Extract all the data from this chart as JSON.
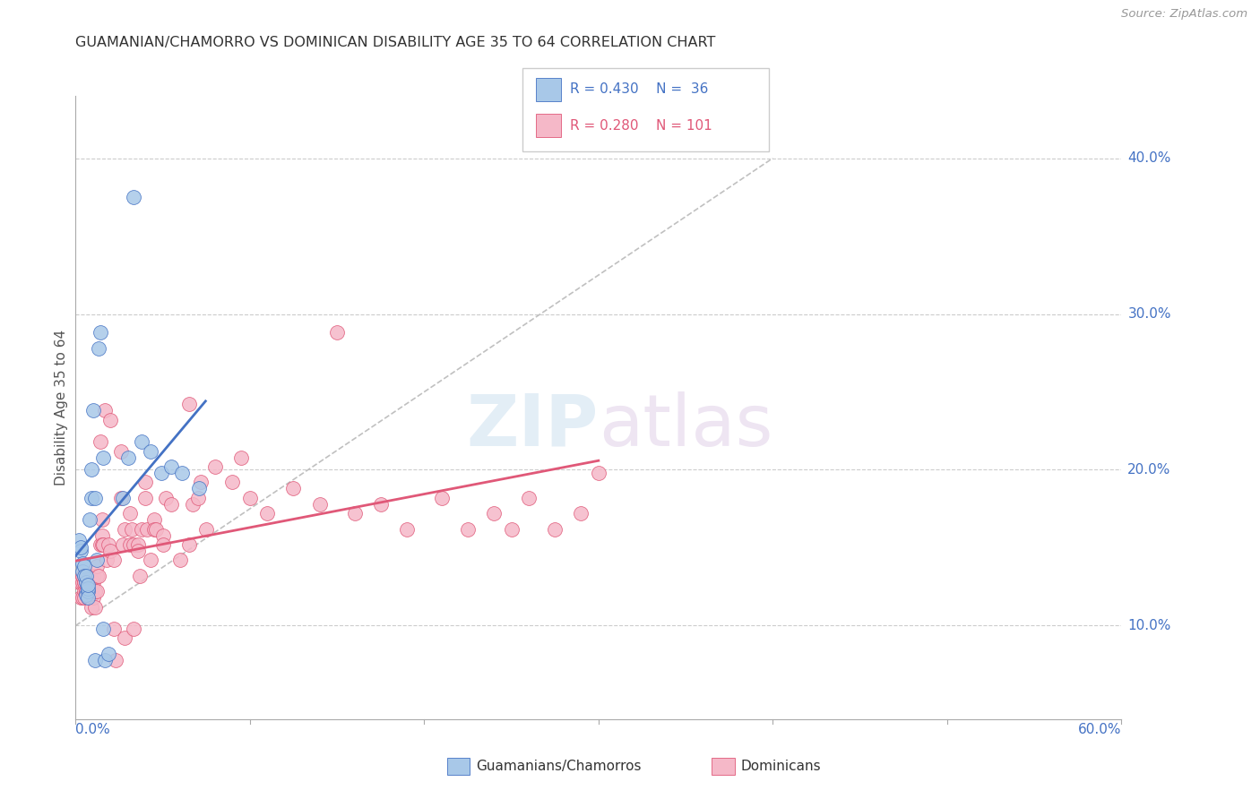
{
  "title": "GUAMANIAN/CHAMORRO VS DOMINICAN DISABILITY AGE 35 TO 64 CORRELATION CHART",
  "source": "Source: ZipAtlas.com",
  "ylabel": "Disability Age 35 to 64",
  "color_blue": "#a8c8e8",
  "color_pink": "#f5b8c8",
  "line_blue": "#4472c4",
  "line_pink": "#e05878",
  "grid_color": "#cccccc",
  "x_lim": [
    0.0,
    0.6
  ],
  "y_lim": [
    0.04,
    0.44
  ],
  "ytick_vals": [
    0.1,
    0.2,
    0.3,
    0.4
  ],
  "ytick_labels": [
    "10.0%",
    "20.0%",
    "30.0%",
    "40.0%"
  ],
  "guam_x": [
    0.002,
    0.003,
    0.003,
    0.004,
    0.004,
    0.005,
    0.005,
    0.006,
    0.006,
    0.006,
    0.007,
    0.007,
    0.007,
    0.007,
    0.008,
    0.009,
    0.009,
    0.01,
    0.011,
    0.011,
    0.012,
    0.013,
    0.014,
    0.016,
    0.016,
    0.017,
    0.019,
    0.027,
    0.03,
    0.033,
    0.038,
    0.043,
    0.049,
    0.055,
    0.061,
    0.071
  ],
  "guam_y": [
    0.155,
    0.148,
    0.15,
    0.14,
    0.135,
    0.138,
    0.132,
    0.128,
    0.132,
    0.12,
    0.122,
    0.124,
    0.118,
    0.126,
    0.168,
    0.2,
    0.182,
    0.238,
    0.182,
    0.078,
    0.142,
    0.278,
    0.288,
    0.208,
    0.098,
    0.078,
    0.082,
    0.182,
    0.208,
    0.375,
    0.218,
    0.212,
    0.198,
    0.202,
    0.198,
    0.188
  ],
  "dom_x": [
    0.002,
    0.003,
    0.003,
    0.004,
    0.004,
    0.004,
    0.005,
    0.005,
    0.005,
    0.005,
    0.005,
    0.006,
    0.006,
    0.006,
    0.006,
    0.007,
    0.007,
    0.007,
    0.007,
    0.007,
    0.008,
    0.008,
    0.008,
    0.008,
    0.009,
    0.009,
    0.009,
    0.01,
    0.01,
    0.01,
    0.011,
    0.011,
    0.012,
    0.012,
    0.012,
    0.013,
    0.014,
    0.014,
    0.015,
    0.015,
    0.015,
    0.016,
    0.017,
    0.018,
    0.019,
    0.02,
    0.02,
    0.022,
    0.022,
    0.023,
    0.026,
    0.026,
    0.027,
    0.028,
    0.028,
    0.031,
    0.031,
    0.032,
    0.033,
    0.033,
    0.036,
    0.036,
    0.037,
    0.038,
    0.04,
    0.04,
    0.041,
    0.043,
    0.045,
    0.045,
    0.046,
    0.05,
    0.05,
    0.052,
    0.055,
    0.06,
    0.065,
    0.065,
    0.067,
    0.07,
    0.072,
    0.075,
    0.08,
    0.09,
    0.095,
    0.1,
    0.11,
    0.125,
    0.14,
    0.15,
    0.16,
    0.175,
    0.19,
    0.21,
    0.225,
    0.24,
    0.25,
    0.26,
    0.275,
    0.29,
    0.3
  ],
  "dom_y": [
    0.128,
    0.128,
    0.118,
    0.128,
    0.118,
    0.132,
    0.122,
    0.128,
    0.118,
    0.132,
    0.128,
    0.122,
    0.132,
    0.122,
    0.128,
    0.118,
    0.128,
    0.122,
    0.118,
    0.132,
    0.118,
    0.132,
    0.122,
    0.118,
    0.122,
    0.128,
    0.112,
    0.118,
    0.132,
    0.128,
    0.122,
    0.112,
    0.132,
    0.138,
    0.122,
    0.132,
    0.152,
    0.218,
    0.158,
    0.168,
    0.152,
    0.152,
    0.238,
    0.142,
    0.152,
    0.232,
    0.148,
    0.098,
    0.142,
    0.078,
    0.212,
    0.182,
    0.152,
    0.162,
    0.092,
    0.152,
    0.172,
    0.162,
    0.152,
    0.098,
    0.152,
    0.148,
    0.132,
    0.162,
    0.192,
    0.182,
    0.162,
    0.142,
    0.168,
    0.162,
    0.162,
    0.158,
    0.152,
    0.182,
    0.178,
    0.142,
    0.242,
    0.152,
    0.178,
    0.182,
    0.192,
    0.162,
    0.202,
    0.192,
    0.208,
    0.182,
    0.172,
    0.188,
    0.178,
    0.288,
    0.172,
    0.178,
    0.162,
    0.182,
    0.162,
    0.172,
    0.162,
    0.182,
    0.162,
    0.172,
    0.198
  ]
}
